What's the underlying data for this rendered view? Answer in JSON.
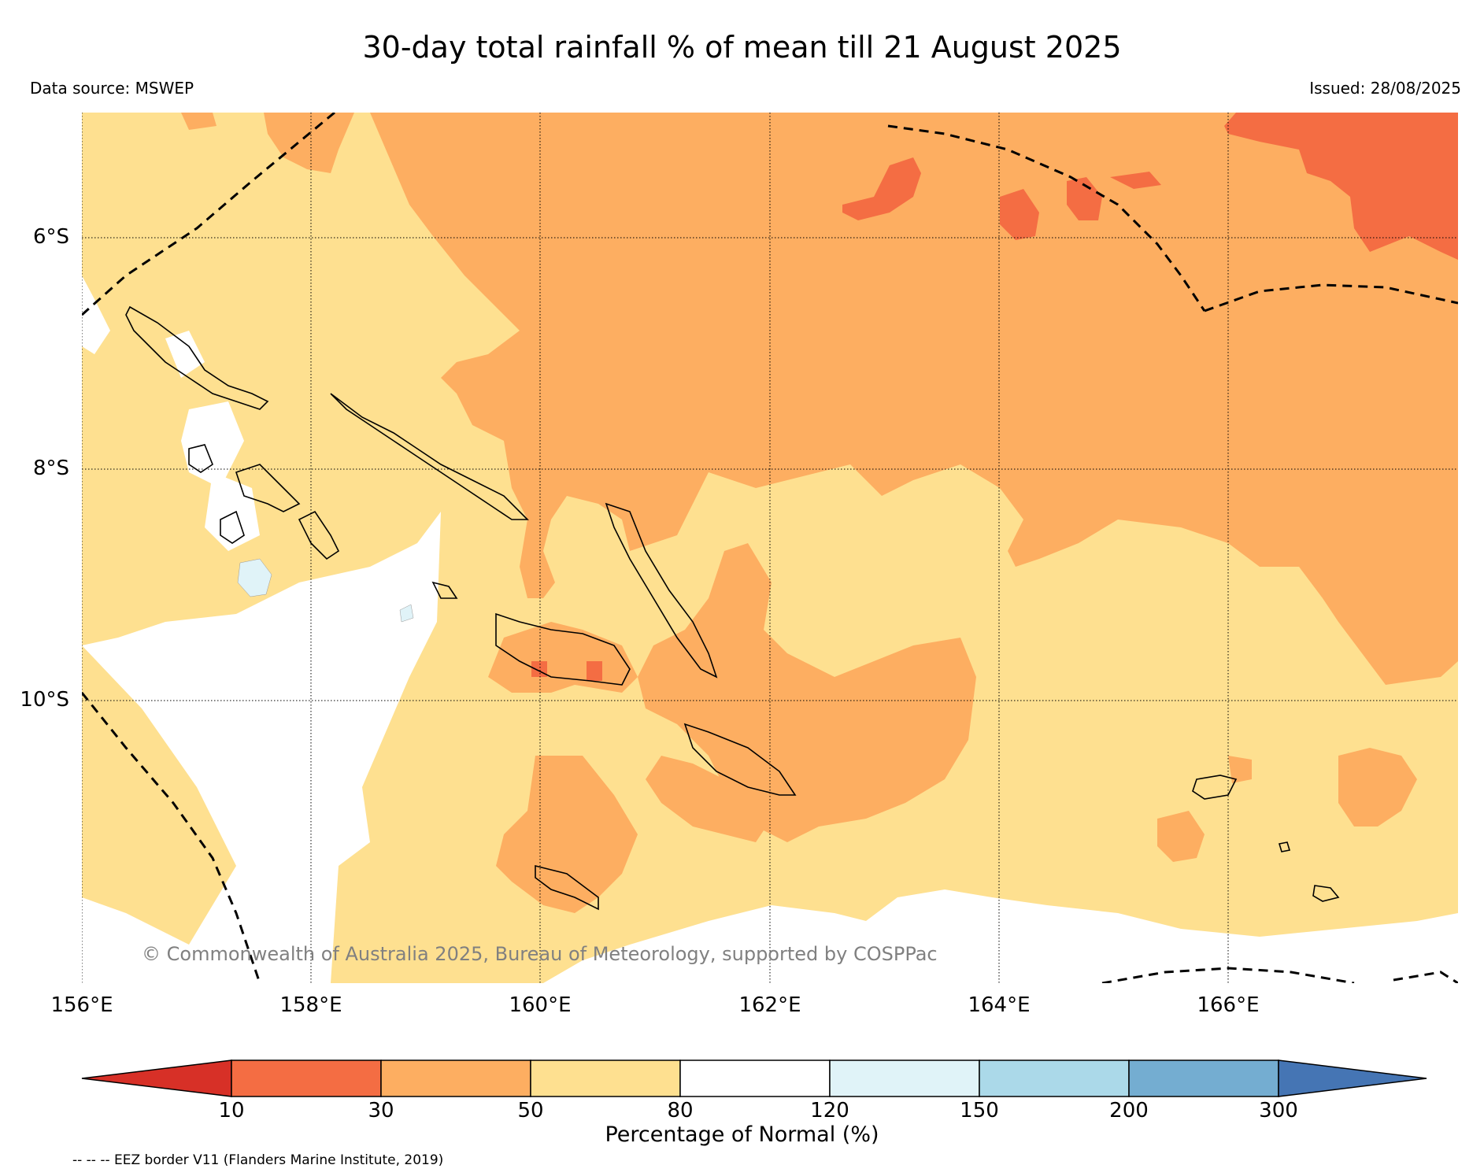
{
  "title": "30-day total rainfall % of mean till 21 August 2025",
  "data_source": "Data source: MSWEP",
  "issued": "Issued: 28/08/2025",
  "copyright": "© Commonwealth of Australia 2025, Bureau of Meteorology, supported by COSPPac",
  "latitude_labels": [
    "6°S",
    "8°S",
    "10°S"
  ],
  "longitude_labels": [
    "156°E",
    "158°E",
    "160°E",
    "162°E",
    "164°E",
    "166°E"
  ],
  "colorbar": {
    "label": "Percentage of Normal (%)",
    "ticks": [
      "10",
      "30",
      "50",
      "80",
      "120",
      "150",
      "200",
      "300"
    ],
    "colors": [
      "#d73027",
      "#f46d43",
      "#fdae61",
      "#fee090",
      "#ffffff",
      "#e0f3f8",
      "#abd9e9",
      "#74add1",
      "#4575b4"
    ]
  },
  "legend_note": "-- -- -- EEZ border V11 (Flanders Marine Institute, 2019)",
  "colors": {
    "severe_deficit": "#f46d43",
    "deficit": "#fdae61",
    "below_normal": "#fee090",
    "normal": "#ffffff",
    "above_normal": "#e0f3f8"
  }
}
